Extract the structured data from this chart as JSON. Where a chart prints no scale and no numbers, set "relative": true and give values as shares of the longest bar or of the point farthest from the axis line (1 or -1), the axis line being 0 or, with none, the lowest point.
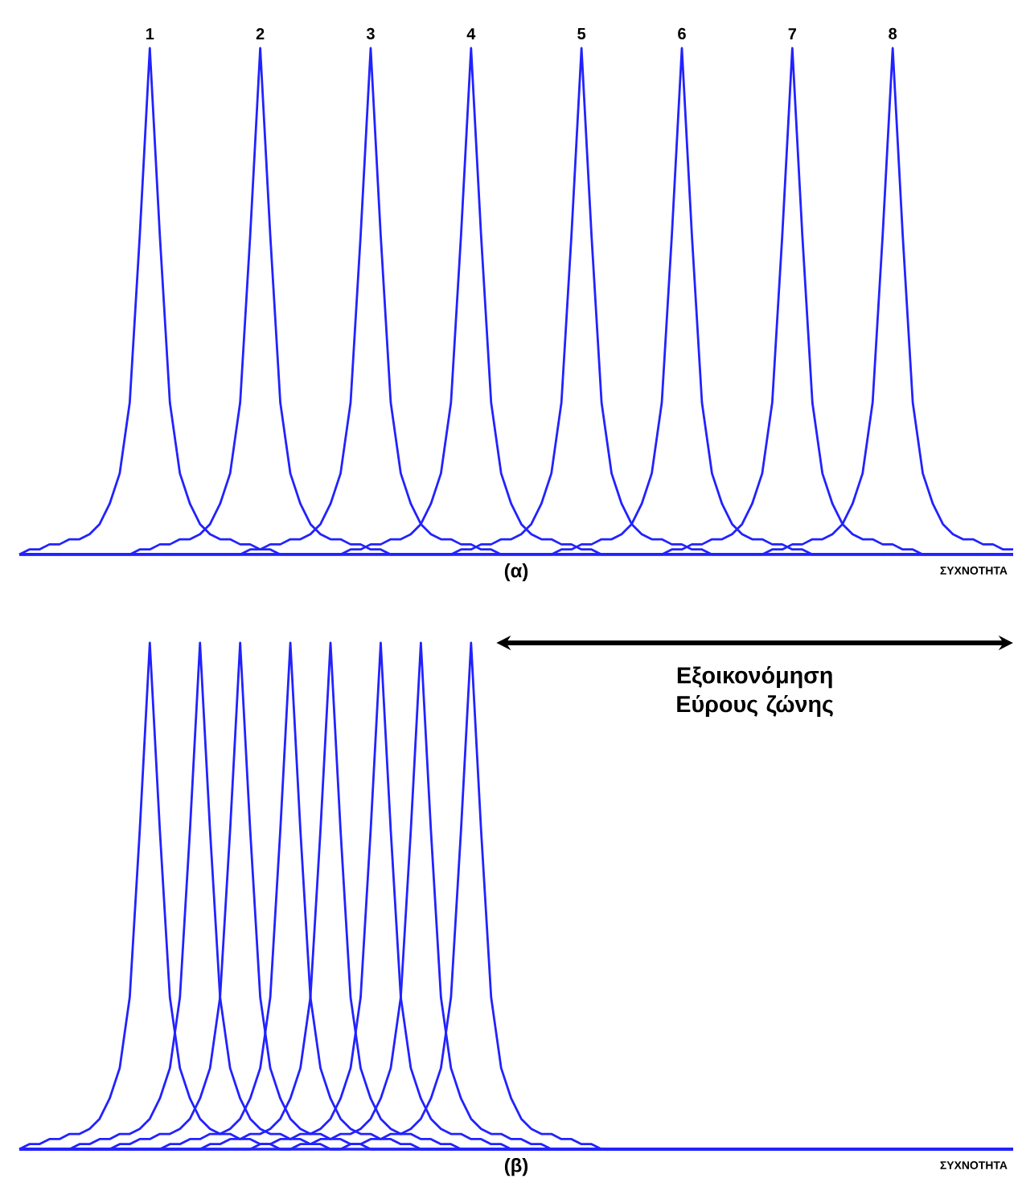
{
  "chart_data": [
    {
      "type": "line",
      "relative": true,
      "title": "(α)",
      "xlabel": "ΣΥΧΝΟΤΗΤΑ",
      "categories": [
        null,
        null,
        null,
        null,
        null,
        null,
        null,
        null,
        null,
        null,
        null,
        null,
        null,
        null,
        null,
        null,
        null,
        null,
        null,
        null,
        null,
        null,
        null,
        null,
        null,
        null,
        null,
        null,
        null,
        null,
        null,
        null,
        null,
        null,
        null,
        null,
        null,
        null,
        null,
        null,
        null,
        null,
        null,
        null,
        null,
        null,
        null,
        null,
        null,
        null,
        null,
        null,
        null,
        null,
        null,
        null,
        null,
        null,
        null,
        null,
        null,
        null,
        null,
        null,
        null,
        null,
        null,
        null,
        null,
        null,
        null,
        null,
        null,
        null,
        null,
        null,
        null,
        null,
        null,
        null,
        null,
        null,
        null,
        null,
        null,
        null,
        null,
        null,
        null,
        null,
        null,
        null,
        null,
        null,
        null,
        null,
        null,
        null,
        null,
        null
      ],
      "series": [
        {
          "name": "1",
          "color": "#2222ff",
          "values": [
            0,
            0.01,
            0.01,
            0.02,
            0.02,
            0.03,
            0.03,
            0.04,
            0.06,
            0.1,
            0.16,
            0.3,
            0.63,
            1,
            0.63,
            0.3,
            0.16,
            0.1,
            0.06,
            0.04,
            0.03,
            0.03,
            0.02,
            0.02,
            0.01,
            0.01,
            0,
            0,
            0,
            0,
            0,
            0,
            0,
            0,
            0,
            0,
            0,
            0,
            0,
            0,
            0,
            0,
            0,
            0,
            0,
            0,
            0,
            0,
            0,
            0,
            0,
            0,
            0,
            0,
            0,
            0,
            0,
            0,
            0,
            0,
            0,
            0,
            0,
            0,
            0,
            0,
            0,
            0,
            0,
            0,
            0,
            0,
            0,
            0,
            0,
            0,
            0,
            0,
            0,
            0,
            0,
            0,
            0,
            0,
            0,
            0,
            0,
            0,
            0,
            0,
            0,
            0,
            0,
            0,
            0,
            0,
            0,
            0,
            0,
            0
          ]
        },
        {
          "name": "2",
          "color": "#2222ff",
          "values": [
            0,
            0,
            0,
            0,
            0,
            0,
            0,
            0,
            0,
            0,
            0,
            0,
            0.01,
            0.01,
            0.02,
            0.02,
            0.03,
            0.03,
            0.04,
            0.06,
            0.1,
            0.16,
            0.3,
            0.63,
            1,
            0.63,
            0.3,
            0.16,
            0.1,
            0.06,
            0.04,
            0.03,
            0.03,
            0.02,
            0.02,
            0.01,
            0.01,
            0,
            0,
            0,
            0,
            0,
            0,
            0,
            0,
            0,
            0,
            0,
            0,
            0,
            0,
            0,
            0,
            0,
            0,
            0,
            0,
            0,
            0,
            0,
            0,
            0,
            0,
            0,
            0,
            0,
            0,
            0,
            0,
            0,
            0,
            0,
            0,
            0,
            0,
            0,
            0,
            0,
            0,
            0,
            0,
            0,
            0,
            0,
            0,
            0,
            0,
            0,
            0,
            0,
            0,
            0,
            0,
            0,
            0,
            0,
            0,
            0,
            0,
            0
          ]
        },
        {
          "name": "3",
          "color": "#2222ff",
          "values": [
            0,
            0,
            0,
            0,
            0,
            0,
            0,
            0,
            0,
            0,
            0,
            0,
            0,
            0,
            0,
            0,
            0,
            0,
            0,
            0,
            0,
            0,
            0,
            0.01,
            0.01,
            0.02,
            0.02,
            0.03,
            0.03,
            0.04,
            0.06,
            0.1,
            0.16,
            0.3,
            0.63,
            1,
            0.63,
            0.3,
            0.16,
            0.1,
            0.06,
            0.04,
            0.03,
            0.03,
            0.02,
            0.02,
            0.01,
            0.01,
            0,
            0,
            0,
            0,
            0,
            0,
            0,
            0,
            0,
            0,
            0,
            0,
            0,
            0,
            0,
            0,
            0,
            0,
            0,
            0,
            0,
            0,
            0,
            0,
            0,
            0,
            0,
            0,
            0,
            0,
            0,
            0,
            0,
            0,
            0,
            0,
            0,
            0,
            0,
            0,
            0,
            0,
            0,
            0,
            0,
            0,
            0,
            0,
            0,
            0,
            0,
            0
          ]
        },
        {
          "name": "4",
          "color": "#2222ff",
          "values": [
            0,
            0,
            0,
            0,
            0,
            0,
            0,
            0,
            0,
            0,
            0,
            0,
            0,
            0,
            0,
            0,
            0,
            0,
            0,
            0,
            0,
            0,
            0,
            0,
            0,
            0,
            0,
            0,
            0,
            0,
            0,
            0,
            0,
            0.01,
            0.01,
            0.02,
            0.02,
            0.03,
            0.03,
            0.04,
            0.06,
            0.1,
            0.16,
            0.3,
            0.63,
            1,
            0.63,
            0.3,
            0.16,
            0.1,
            0.06,
            0.04,
            0.03,
            0.03,
            0.02,
            0.02,
            0.01,
            0.01,
            0,
            0,
            0,
            0,
            0,
            0,
            0,
            0,
            0,
            0,
            0,
            0,
            0,
            0,
            0,
            0,
            0,
            0,
            0,
            0,
            0,
            0,
            0,
            0,
            0,
            0,
            0,
            0,
            0,
            0,
            0,
            0,
            0,
            0,
            0,
            0,
            0,
            0,
            0,
            0,
            0,
            0
          ]
        },
        {
          "name": "5",
          "color": "#2222ff",
          "values": [
            0,
            0,
            0,
            0,
            0,
            0,
            0,
            0,
            0,
            0,
            0,
            0,
            0,
            0,
            0,
            0,
            0,
            0,
            0,
            0,
            0,
            0,
            0,
            0,
            0,
            0,
            0,
            0,
            0,
            0,
            0,
            0,
            0,
            0,
            0,
            0,
            0,
            0,
            0,
            0,
            0,
            0,
            0,
            0,
            0.01,
            0.01,
            0.02,
            0.02,
            0.03,
            0.03,
            0.04,
            0.06,
            0.1,
            0.16,
            0.3,
            0.63,
            1,
            0.63,
            0.3,
            0.16,
            0.1,
            0.06,
            0.04,
            0.03,
            0.03,
            0.02,
            0.02,
            0.01,
            0.01,
            0,
            0,
            0,
            0,
            0,
            0,
            0,
            0,
            0,
            0,
            0,
            0,
            0,
            0,
            0,
            0,
            0,
            0,
            0,
            0,
            0,
            0,
            0,
            0,
            0,
            0,
            0,
            0,
            0,
            0,
            0
          ]
        },
        {
          "name": "6",
          "color": "#2222ff",
          "values": [
            0,
            0,
            0,
            0,
            0,
            0,
            0,
            0,
            0,
            0,
            0,
            0,
            0,
            0,
            0,
            0,
            0,
            0,
            0,
            0,
            0,
            0,
            0,
            0,
            0,
            0,
            0,
            0,
            0,
            0,
            0,
            0,
            0,
            0,
            0,
            0,
            0,
            0,
            0,
            0,
            0,
            0,
            0,
            0,
            0,
            0,
            0,
            0,
            0,
            0,
            0,
            0,
            0,
            0,
            0.01,
            0.01,
            0.02,
            0.02,
            0.03,
            0.03,
            0.04,
            0.06,
            0.1,
            0.16,
            0.3,
            0.63,
            1,
            0.63,
            0.3,
            0.16,
            0.1,
            0.06,
            0.04,
            0.03,
            0.03,
            0.02,
            0.02,
            0.01,
            0.01,
            0,
            0,
            0,
            0,
            0,
            0,
            0,
            0,
            0,
            0,
            0,
            0,
            0,
            0,
            0,
            0,
            0,
            0,
            0,
            0,
            0
          ]
        },
        {
          "name": "7",
          "color": "#2222ff",
          "values": [
            0,
            0,
            0,
            0,
            0,
            0,
            0,
            0,
            0,
            0,
            0,
            0,
            0,
            0,
            0,
            0,
            0,
            0,
            0,
            0,
            0,
            0,
            0,
            0,
            0,
            0,
            0,
            0,
            0,
            0,
            0,
            0,
            0,
            0,
            0,
            0,
            0,
            0,
            0,
            0,
            0,
            0,
            0,
            0,
            0,
            0,
            0,
            0,
            0,
            0,
            0,
            0,
            0,
            0,
            0,
            0,
            0,
            0,
            0,
            0,
            0,
            0,
            0,
            0,
            0,
            0.01,
            0.01,
            0.02,
            0.02,
            0.03,
            0.03,
            0.04,
            0.06,
            0.1,
            0.16,
            0.3,
            0.63,
            1,
            0.63,
            0.3,
            0.16,
            0.1,
            0.06,
            0.04,
            0.03,
            0.03,
            0.02,
            0.02,
            0.01,
            0.01,
            0,
            0,
            0,
            0,
            0,
            0,
            0,
            0,
            0,
            0
          ]
        },
        {
          "name": "8",
          "color": "#2222ff",
          "values": [
            0,
            0,
            0,
            0,
            0,
            0,
            0,
            0,
            0,
            0,
            0,
            0,
            0,
            0,
            0,
            0,
            0,
            0,
            0,
            0,
            0,
            0,
            0,
            0,
            0,
            0,
            0,
            0,
            0,
            0,
            0,
            0,
            0,
            0,
            0,
            0,
            0,
            0,
            0,
            0,
            0,
            0,
            0,
            0,
            0,
            0,
            0,
            0,
            0,
            0,
            0,
            0,
            0,
            0,
            0,
            0,
            0,
            0,
            0,
            0,
            0,
            0,
            0,
            0,
            0,
            0,
            0,
            0,
            0,
            0,
            0,
            0,
            0,
            0,
            0,
            0.01,
            0.01,
            0.02,
            0.02,
            0.03,
            0.03,
            0.04,
            0.06,
            0.1,
            0.16,
            0.3,
            0.63,
            1,
            0.63,
            0.3,
            0.16,
            0.1,
            0.06,
            0.04,
            0.03,
            0.03,
            0.02,
            0.02,
            0.01,
            0.01
          ]
        }
      ]
    },
    {
      "type": "line",
      "relative": true,
      "title": "(β)",
      "xlabel": "ΣΥΧΝΟΤΗΤΑ",
      "annotations": [
        "Εξοικονόμηση Εύρους ζώνης"
      ],
      "categories": [
        null,
        null,
        null,
        null,
        null,
        null,
        null,
        null,
        null,
        null,
        null,
        null,
        null,
        null,
        null,
        null,
        null,
        null,
        null,
        null,
        null,
        null,
        null,
        null,
        null,
        null,
        null,
        null,
        null,
        null,
        null,
        null,
        null,
        null,
        null,
        null,
        null,
        null,
        null,
        null,
        null,
        null,
        null,
        null,
        null,
        null,
        null,
        null,
        null,
        null,
        null,
        null,
        null,
        null,
        null,
        null,
        null,
        null,
        null,
        null,
        null,
        null,
        null,
        null,
        null,
        null,
        null,
        null,
        null,
        null,
        null,
        null,
        null,
        null,
        null,
        null,
        null,
        null,
        null,
        null,
        null,
        null,
        null,
        null,
        null,
        null,
        null,
        null,
        null,
        null,
        null,
        null,
        null,
        null,
        null,
        null,
        null,
        null,
        null,
        null
      ],
      "series": [
        {
          "color": "#2222ff",
          "values": [
            0,
            0.01,
            0.01,
            0.02,
            0.02,
            0.03,
            0.03,
            0.04,
            0.06,
            0.1,
            0.16,
            0.3,
            0.63,
            1,
            0.63,
            0.3,
            0.16,
            0.1,
            0.06,
            0.04,
            0.03,
            0.03,
            0.02,
            0.02,
            0.01,
            0.01,
            0,
            0,
            0,
            0,
            0,
            0,
            0,
            0,
            0,
            0,
            0,
            0,
            0,
            0,
            0,
            0,
            0,
            0,
            0,
            0,
            0,
            0,
            0,
            0,
            0,
            0,
            0,
            0,
            0,
            0,
            0,
            0,
            0,
            0,
            0,
            0,
            0,
            0,
            0,
            0,
            0,
            0,
            0,
            0,
            0,
            0,
            0,
            0,
            0,
            0,
            0,
            0,
            0,
            0,
            0,
            0,
            0,
            0,
            0,
            0,
            0,
            0,
            0,
            0,
            0,
            0,
            0,
            0,
            0,
            0,
            0,
            0,
            0,
            0
          ]
        },
        {
          "color": "#2222ff",
          "values": [
            0,
            0,
            0,
            0,
            0,
            0,
            0.01,
            0.01,
            0.02,
            0.02,
            0.03,
            0.03,
            0.04,
            0.06,
            0.1,
            0.16,
            0.3,
            0.63,
            1,
            0.63,
            0.3,
            0.16,
            0.1,
            0.06,
            0.04,
            0.03,
            0.03,
            0.02,
            0.02,
            0.01,
            0.01,
            0,
            0,
            0,
            0,
            0,
            0,
            0,
            0,
            0,
            0,
            0,
            0,
            0,
            0,
            0,
            0,
            0,
            0,
            0,
            0,
            0,
            0,
            0,
            0,
            0,
            0,
            0,
            0,
            0,
            0,
            0,
            0,
            0,
            0,
            0,
            0,
            0,
            0,
            0,
            0,
            0,
            0,
            0,
            0,
            0,
            0,
            0,
            0,
            0,
            0,
            0,
            0,
            0,
            0,
            0,
            0,
            0,
            0,
            0,
            0,
            0,
            0,
            0,
            0,
            0,
            0,
            0,
            0,
            0
          ]
        },
        {
          "color": "#2222ff",
          "values": [
            0,
            0,
            0,
            0,
            0,
            0,
            0,
            0,
            0,
            0,
            0.01,
            0.01,
            0.02,
            0.02,
            0.03,
            0.03,
            0.04,
            0.06,
            0.1,
            0.16,
            0.3,
            0.63,
            1,
            0.63,
            0.3,
            0.16,
            0.1,
            0.06,
            0.04,
            0.03,
            0.03,
            0.02,
            0.02,
            0.01,
            0.01,
            0,
            0,
            0,
            0,
            0,
            0,
            0,
            0,
            0,
            0,
            0,
            0,
            0,
            0,
            0,
            0,
            0,
            0,
            0,
            0,
            0,
            0,
            0,
            0,
            0,
            0,
            0,
            0,
            0,
            0,
            0,
            0,
            0,
            0,
            0,
            0,
            0,
            0,
            0,
            0,
            0,
            0,
            0,
            0,
            0,
            0,
            0,
            0,
            0,
            0,
            0,
            0,
            0,
            0,
            0,
            0,
            0,
            0,
            0,
            0,
            0,
            0,
            0,
            0,
            0
          ]
        },
        {
          "color": "#2222ff",
          "values": [
            0,
            0,
            0,
            0,
            0,
            0,
            0,
            0,
            0,
            0,
            0,
            0,
            0,
            0,
            0,
            0.01,
            0.01,
            0.02,
            0.02,
            0.03,
            0.03,
            0.04,
            0.06,
            0.1,
            0.16,
            0.3,
            0.63,
            1,
            0.63,
            0.3,
            0.16,
            0.1,
            0.06,
            0.04,
            0.03,
            0.03,
            0.02,
            0.02,
            0.01,
            0.01,
            0,
            0,
            0,
            0,
            0,
            0,
            0,
            0,
            0,
            0,
            0,
            0,
            0,
            0,
            0,
            0,
            0,
            0,
            0,
            0,
            0,
            0,
            0,
            0,
            0,
            0,
            0,
            0,
            0,
            0,
            0,
            0,
            0,
            0,
            0,
            0,
            0,
            0,
            0,
            0,
            0,
            0,
            0,
            0,
            0,
            0,
            0,
            0,
            0,
            0,
            0,
            0,
            0,
            0,
            0,
            0,
            0,
            0,
            0,
            0
          ]
        },
        {
          "color": "#2222ff",
          "values": [
            0,
            0,
            0,
            0,
            0,
            0,
            0,
            0,
            0,
            0,
            0,
            0,
            0,
            0,
            0,
            0,
            0,
            0,
            0,
            0.01,
            0.01,
            0.02,
            0.02,
            0.03,
            0.03,
            0.04,
            0.06,
            0.1,
            0.16,
            0.3,
            0.63,
            1,
            0.63,
            0.3,
            0.16,
            0.1,
            0.06,
            0.04,
            0.03,
            0.03,
            0.02,
            0.02,
            0.01,
            0.01,
            0,
            0,
            0,
            0,
            0,
            0,
            0,
            0,
            0,
            0,
            0,
            0,
            0,
            0,
            0,
            0,
            0,
            0,
            0,
            0,
            0,
            0,
            0,
            0,
            0,
            0,
            0,
            0,
            0,
            0,
            0,
            0,
            0,
            0,
            0,
            0,
            0,
            0,
            0,
            0,
            0,
            0,
            0,
            0,
            0,
            0,
            0,
            0,
            0,
            0,
            0,
            0,
            0,
            0,
            0,
            0
          ]
        },
        {
          "color": "#2222ff",
          "values": [
            0,
            0,
            0,
            0,
            0,
            0,
            0,
            0,
            0,
            0,
            0,
            0,
            0,
            0,
            0,
            0,
            0,
            0,
            0,
            0,
            0,
            0,
            0,
            0,
            0.01,
            0.01,
            0.02,
            0.02,
            0.03,
            0.03,
            0.04,
            0.06,
            0.1,
            0.16,
            0.3,
            0.63,
            1,
            0.63,
            0.3,
            0.16,
            0.1,
            0.06,
            0.04,
            0.03,
            0.03,
            0.02,
            0.02,
            0.01,
            0.01,
            0,
            0,
            0,
            0,
            0,
            0,
            0,
            0,
            0,
            0,
            0,
            0,
            0,
            0,
            0,
            0,
            0,
            0,
            0,
            0,
            0,
            0,
            0,
            0,
            0,
            0,
            0,
            0,
            0,
            0,
            0,
            0,
            0,
            0,
            0,
            0,
            0,
            0,
            0,
            0,
            0,
            0,
            0,
            0,
            0,
            0,
            0,
            0,
            0,
            0,
            0
          ]
        },
        {
          "color": "#2222ff",
          "values": [
            0,
            0,
            0,
            0,
            0,
            0,
            0,
            0,
            0,
            0,
            0,
            0,
            0,
            0,
            0,
            0,
            0,
            0,
            0,
            0,
            0,
            0,
            0,
            0,
            0,
            0,
            0,
            0,
            0.01,
            0.01,
            0.02,
            0.02,
            0.03,
            0.03,
            0.04,
            0.06,
            0.1,
            0.16,
            0.3,
            0.63,
            1,
            0.63,
            0.3,
            0.16,
            0.1,
            0.06,
            0.04,
            0.03,
            0.03,
            0.02,
            0.02,
            0.01,
            0.01,
            0,
            0,
            0,
            0,
            0,
            0,
            0,
            0,
            0,
            0,
            0,
            0,
            0,
            0,
            0,
            0,
            0,
            0,
            0,
            0,
            0,
            0,
            0,
            0,
            0,
            0,
            0,
            0,
            0,
            0,
            0,
            0,
            0,
            0,
            0,
            0,
            0,
            0,
            0,
            0,
            0,
            0,
            0,
            0,
            0,
            0,
            0
          ]
        },
        {
          "color": "#2222ff",
          "values": [
            0,
            0,
            0,
            0,
            0,
            0,
            0,
            0,
            0,
            0,
            0,
            0,
            0,
            0,
            0,
            0,
            0,
            0,
            0,
            0,
            0,
            0,
            0,
            0,
            0,
            0,
            0,
            0,
            0,
            0,
            0,
            0,
            0,
            0.01,
            0.01,
            0.02,
            0.02,
            0.03,
            0.03,
            0.04,
            0.06,
            0.1,
            0.16,
            0.3,
            0.63,
            1,
            0.63,
            0.3,
            0.16,
            0.1,
            0.06,
            0.04,
            0.03,
            0.03,
            0.02,
            0.02,
            0.01,
            0.01,
            0,
            0,
            0,
            0,
            0,
            0,
            0,
            0,
            0,
            0,
            0,
            0,
            0,
            0,
            0,
            0,
            0,
            0,
            0,
            0,
            0,
            0,
            0,
            0,
            0,
            0,
            0,
            0,
            0,
            0,
            0,
            0,
            0,
            0,
            0,
            0,
            0,
            0,
            0,
            0,
            0,
            0
          ]
        }
      ]
    }
  ]
}
